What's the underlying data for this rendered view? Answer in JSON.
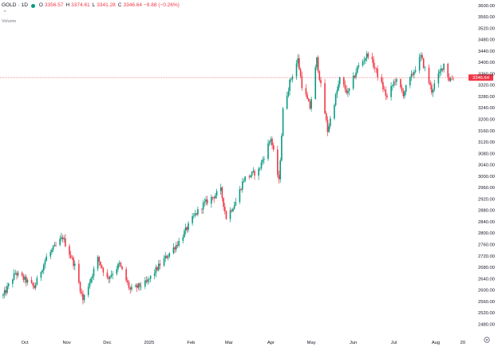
{
  "legend": {
    "symbol": "GOLD",
    "sep": "·",
    "timeframe": "1D",
    "open_key": "O",
    "open": "3356.57",
    "high_key": "H",
    "high": "3374.61",
    "low_key": "L",
    "low": "3341.28",
    "close_key": "C",
    "close": "3346.64",
    "change": "−9.88 (−0.26%)",
    "up_color": "#089981",
    "down_color": "#f23645"
  },
  "volume_label": "Volume",
  "collapse_icon": "chevron-up-icon",
  "settings_icon": "gear-icon",
  "chart_data": {
    "type": "candlestick",
    "y_axis": {
      "ticks": [
        2480,
        2520,
        2560,
        2600,
        2640,
        2680,
        2720,
        2760,
        2800,
        2840,
        2880,
        2920,
        2960,
        3000,
        3040,
        3080,
        3120,
        3160,
        3200,
        3240,
        3280,
        3320,
        3360,
        3400,
        3440,
        3480,
        3520,
        3560,
        3600
      ],
      "range": [
        2470,
        3605
      ]
    },
    "x_axis": {
      "labels": [
        "Oct",
        "Nov",
        "Dec",
        "2025",
        "Feb",
        "Mar",
        "Apr",
        "May",
        "Jun",
        "Jul",
        "Aug",
        "20"
      ]
    },
    "last_price": 3346.64,
    "last_price_label": "3346.64",
    "keypoints": [
      [
        "2024-09-16",
        2580
      ],
      [
        "2024-09-25",
        2660
      ],
      [
        "2024-10-01",
        2640
      ],
      [
        "2024-10-09",
        2610
      ],
      [
        "2024-10-18",
        2715
      ],
      [
        "2024-10-30",
        2785
      ],
      [
        "2024-11-08",
        2685
      ],
      [
        "2024-11-14",
        2565
      ],
      [
        "2024-11-25",
        2710
      ],
      [
        "2024-12-02",
        2640
      ],
      [
        "2024-12-11",
        2690
      ],
      [
        "2024-12-19",
        2600
      ],
      [
        "2024-12-31",
        2625
      ],
      [
        "2025-01-10",
        2690
      ],
      [
        "2025-01-24",
        2770
      ],
      [
        "2025-02-05",
        2865
      ],
      [
        "2025-02-11",
        2900
      ],
      [
        "2025-02-24",
        2950
      ],
      [
        "2025-02-28",
        2855
      ],
      [
        "2025-03-07",
        2910
      ],
      [
        "2025-03-13",
        2990
      ],
      [
        "2025-03-24",
        3020
      ],
      [
        "2025-04-02",
        3135
      ],
      [
        "2025-04-08",
        2980
      ],
      [
        "2025-04-11",
        3230
      ],
      [
        "2025-04-16",
        3330
      ],
      [
        "2025-04-22",
        3410
      ],
      [
        "2025-04-25",
        3320
      ],
      [
        "2025-05-01",
        3240
      ],
      [
        "2025-05-06",
        3410
      ],
      [
        "2025-05-14",
        3160
      ],
      [
        "2025-05-23",
        3340
      ],
      [
        "2025-05-29",
        3290
      ],
      [
        "2025-06-05",
        3380
      ],
      [
        "2025-06-13",
        3430
      ],
      [
        "2025-06-18",
        3380
      ],
      [
        "2025-06-27",
        3275
      ],
      [
        "2025-07-03",
        3340
      ],
      [
        "2025-07-09",
        3290
      ],
      [
        "2025-07-22",
        3420
      ],
      [
        "2025-07-30",
        3300
      ],
      [
        "2025-08-08",
        3395
      ],
      [
        "2025-08-12",
        3340
      ],
      [
        "2025-08-15",
        3346.64
      ]
    ],
    "grid": false
  }
}
